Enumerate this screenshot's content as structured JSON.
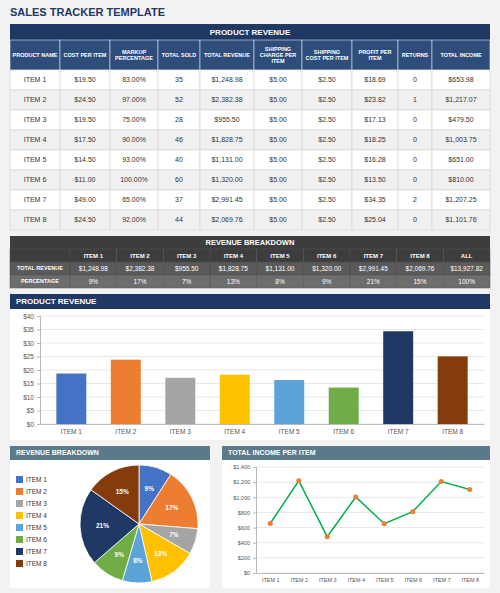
{
  "chart_data": [
    {
      "type": "table",
      "title": "SALES TRACKER TEMPLATE",
      "subtitle": "PRODUCT REVENUE",
      "color": "#1f3864",
      "xlabel": "PRODUCT NAME",
      "categories": [
        "ITEM 1",
        "ITEM 2",
        "ITEM 3",
        "ITEM 4",
        "ITEM 5",
        "ITEM 6",
        "ITEM 7",
        "ITEM 8"
      ],
      "series": [
        {
          "name": "COST PER ITEM",
          "values": [
            19.5,
            24.5,
            19.5,
            17.5,
            14.5,
            11.0,
            49.0,
            24.5
          ],
          "value_labels": [
            "$19.50",
            "$24.50",
            "$19.50",
            "$17.50",
            "$14.50",
            "$11.00",
            "$49.00",
            "$24.50"
          ]
        },
        {
          "name": "MARKUP\nPERCENTAGE",
          "values": [
            83,
            97,
            75,
            90,
            93,
            100,
            65,
            92
          ],
          "value_labels": [
            "83.00%",
            "97.00%",
            "75.00%",
            "90.00%",
            "93.00%",
            "100.00%",
            "65.00%",
            "92.00%"
          ]
        },
        {
          "name": "TOTAL SOLD",
          "values": [
            35,
            52,
            28,
            46,
            40,
            60,
            37,
            44
          ]
        },
        {
          "name": "TOTAL REVENUE",
          "values": [
            1248.98,
            2382.38,
            955.5,
            1828.75,
            1131.0,
            1320.0,
            2991.45,
            2069.76
          ],
          "value_labels": [
            "$1,248.98",
            "$2,382.38",
            "$955.50",
            "$1,828.75",
            "$1,131.00",
            "$1,320.00",
            "$2,991.45",
            "$2,069.76"
          ]
        },
        {
          "name": "SHIPPING\nCHARGE PER\nITEM",
          "values": [
            5.0,
            5.0,
            5.0,
            5.0,
            5.0,
            5.0,
            5.0,
            5.0
          ],
          "value_labels": [
            "$5.00",
            "$5.00",
            "$5.00",
            "$5.00",
            "$5.00",
            "$5.00",
            "$5.00",
            "$5.00"
          ]
        },
        {
          "name": "SHIPPING\nCOST PER ITEM",
          "values": [
            2.5,
            2.5,
            2.5,
            2.5,
            2.5,
            2.5,
            2.5,
            2.5
          ],
          "value_labels": [
            "$2.50",
            "$2.50",
            "$2.50",
            "$2.50",
            "$2.50",
            "$2.50",
            "$2.50",
            "$2.50"
          ]
        },
        {
          "name": "PROFIT PER\nITEM",
          "values": [
            18.69,
            23.82,
            17.13,
            18.25,
            16.28,
            13.5,
            34.35,
            25.04
          ],
          "value_labels": [
            "$18.69",
            "$23.82",
            "$17.13",
            "$18.25",
            "$16.28",
            "$13.50",
            "$34.35",
            "$25.04"
          ]
        },
        {
          "name": "RETURNS",
          "values": [
            0,
            1,
            0,
            0,
            0,
            0,
            2,
            0
          ]
        },
        {
          "name": "TOTAL INCOME",
          "values": [
            653.98,
            1217.07,
            479.5,
            1003.75,
            651.0,
            810.0,
            1207.25,
            1101.76
          ],
          "value_labels": [
            "$653.98",
            "$1,217.07",
            "$479.50",
            "$1,003.75",
            "$651.00",
            "$810.00",
            "$1,207.25",
            "$1,101.76"
          ]
        }
      ]
    },
    {
      "type": "table",
      "title": "REVENUE BREAKDOWN",
      "categories": [
        "ITEM 1",
        "ITEM 2",
        "ITEM 3",
        "ITEM 4",
        "ITEM 5",
        "ITEM 6",
        "ITEM 7",
        "ITEM 8",
        "ALL"
      ],
      "series": [
        {
          "name": "TOTAL REVENUE",
          "values": [
            1248.98,
            2382.38,
            955.5,
            1828.75,
            1131.0,
            1320.0,
            2991.45,
            2069.76,
            13927.82
          ],
          "value_labels": [
            "$1,248.98",
            "$2,382.38",
            "$955.50",
            "$1,828.75",
            "$1,131.00",
            "$1,320.00",
            "$2,991.45",
            "$2,069.76",
            "$13,927.82"
          ]
        },
        {
          "name": "PERCENTAGE",
          "values": [
            9,
            17,
            7,
            13,
            8,
            9,
            21,
            15,
            100
          ],
          "value_labels": [
            "9%",
            "17%",
            "7%",
            "13%",
            "8%",
            "9%",
            "21%",
            "15%",
            "100%"
          ]
        }
      ]
    },
    {
      "type": "bar",
      "title": "PRODUCT REVENUE",
      "categories": [
        "ITEM 1",
        "ITEM 2",
        "ITEM 3",
        "ITEM 4",
        "ITEM 5",
        "ITEM 6",
        "ITEM 7",
        "ITEM 8"
      ],
      "values": [
        18.69,
        23.82,
        17.13,
        18.25,
        16.28,
        13.5,
        34.35,
        25.04
      ],
      "colors": [
        "#4472c4",
        "#ed7d31",
        "#a5a5a5",
        "#ffc000",
        "#5ba3d9",
        "#70ad47",
        "#1f3864",
        "#843c0c"
      ],
      "ylim": [
        0,
        40
      ],
      "yticks": [
        {
          "value": 0,
          "label": "$0"
        },
        {
          "value": 5,
          "label": "$5"
        },
        {
          "value": 10,
          "label": "$10"
        },
        {
          "value": 15,
          "label": "$15"
        },
        {
          "value": 20,
          "label": "$20"
        },
        {
          "value": 25,
          "label": "$25"
        },
        {
          "value": 30,
          "label": "$30"
        },
        {
          "value": 35,
          "label": "$35"
        },
        {
          "value": 40,
          "label": "$40"
        }
      ],
      "grid": true
    },
    {
      "type": "pie",
      "title": "REVENUE BREAKDOWN",
      "categories": [
        "ITEM 1",
        "ITEM 2",
        "ITEM 3",
        "ITEM 4",
        "ITEM 5",
        "ITEM 6",
        "ITEM 7",
        "ITEM 8"
      ],
      "values": [
        9,
        17,
        7,
        13,
        8,
        9,
        21,
        15
      ],
      "value_labels": [
        "9%",
        "17%",
        "7%",
        "13%",
        "8%",
        "9%",
        "21%",
        "15%"
      ],
      "colors": [
        "#4472c4",
        "#ed7d31",
        "#a5a5a5",
        "#ffc000",
        "#5ba3d9",
        "#70ad47",
        "#1f3864",
        "#843c0c"
      ],
      "data_labels": true,
      "legend": "left"
    },
    {
      "type": "line",
      "title": "TOTAL INCOME PER ITEM",
      "categories": [
        "ITEM 1",
        "ITEM 2",
        "ITEM 3",
        "ITEM 4",
        "ITEM 5",
        "ITEM 6",
        "ITEM 7",
        "ITEM 8"
      ],
      "values": [
        653.98,
        1217.07,
        479.5,
        1003.75,
        651.0,
        810.0,
        1207.25,
        1101.76
      ],
      "color": "#00b050",
      "marker": "circle",
      "colors": [
        "#ed7d31",
        "#ed7d31",
        "#ed7d31",
        "#ed7d31",
        "#ed7d31",
        "#ed7d31",
        "#ed7d31",
        "#ed7d31"
      ],
      "ylim": [
        0,
        1400
      ],
      "yticks": [
        {
          "value": 0,
          "label": "$0"
        },
        {
          "value": 200,
          "label": "$200"
        },
        {
          "value": 400,
          "label": "$400"
        },
        {
          "value": 600,
          "label": "$600"
        },
        {
          "value": 800,
          "label": "$800"
        },
        {
          "value": 1000,
          "label": "$1,000"
        },
        {
          "value": 1200,
          "label": "$1,200"
        },
        {
          "value": 1400,
          "label": "$1,400"
        }
      ],
      "grid": true
    }
  ]
}
